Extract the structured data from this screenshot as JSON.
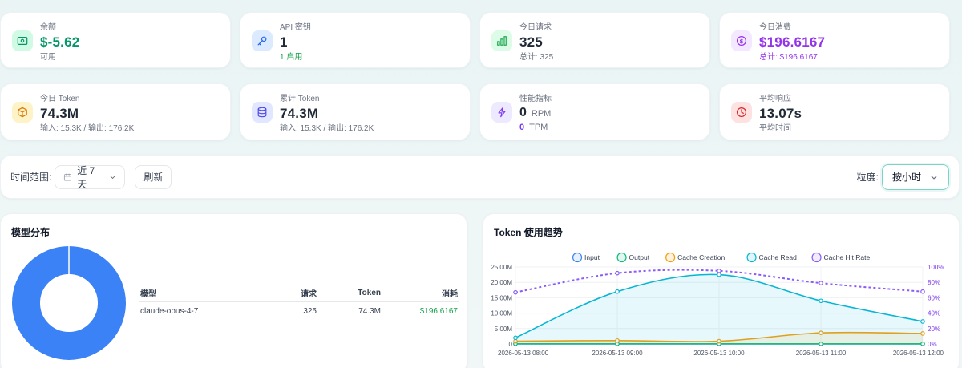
{
  "stats": [
    {
      "label": "余额",
      "value": "$-5.62",
      "sub": "可用",
      "icon": "wallet-icon",
      "color": "#059669",
      "bg": "#d1fae5",
      "sub_color": "#6b7280"
    },
    {
      "label": "API 密钥",
      "value": "1",
      "sub": "1 启用",
      "icon": "key-icon",
      "color": "#111827",
      "bg": "#dbeafe",
      "sub_color": "#16a34a"
    },
    {
      "label": "今日请求",
      "value": "325",
      "sub": "总计: 325",
      "icon": "bar-chart-icon",
      "color": "#111827",
      "bg": "#dcfce7",
      "sub_color": "#6b7280"
    },
    {
      "label": "今日消费",
      "value": "$196.6167",
      "sub": "总计: $196.6167",
      "icon": "dollar-icon",
      "color": "#9333ea",
      "bg": "#f3e8ff",
      "sub_color": "#9333ea"
    },
    {
      "label": "今日 Token",
      "value": "74.3M",
      "sub": "输入: 15.3K / 输出: 176.2K",
      "icon": "cube-icon",
      "color": "#111827",
      "bg": "#fef3c7",
      "sub_color": "#6b7280"
    },
    {
      "label": "累计 Token",
      "value": "74.3M",
      "sub": "输入: 15.3K / 输出: 176.2K",
      "icon": "database-icon",
      "color": "#111827",
      "bg": "#e0e7ff",
      "sub_color": "#6b7280"
    },
    {
      "label": "性能指标",
      "value": "0",
      "value_unit": "RPM",
      "sub_value": "0",
      "sub_unit": "TPM",
      "icon": "bolt-icon",
      "color": "#111827",
      "bg": "#ede9fe"
    },
    {
      "label": "平均响应",
      "value": "13.07s",
      "sub": "平均时间",
      "icon": "clock-icon",
      "color": "#111827",
      "bg": "#fee2e2",
      "sub_color": "#6b7280"
    }
  ],
  "filter": {
    "range_label": "时间范围:",
    "range_value": "近 7 天",
    "refresh_label": "刷新",
    "granularity_label": "粒度:",
    "granularity_value": "按小时"
  },
  "model_panel": {
    "title": "模型分布",
    "columns": [
      "模型",
      "请求",
      "Token",
      "消耗"
    ],
    "rows": [
      {
        "model": "claude-opus-4-7",
        "requests": "325",
        "tokens": "74.3M",
        "cost": "$196.6167"
      }
    ],
    "donut_color": "#3b82f6"
  },
  "chart_panel": {
    "title": "Token 使用趋势"
  },
  "chart_data": {
    "type": "line",
    "x": [
      "2026-05-13 08:00",
      "2026-05-13 09:00",
      "2026-05-13 10:00",
      "2026-05-13 11:00",
      "2026-05-13 12:00"
    ],
    "y_ticks": [
      "0",
      "5.00M",
      "10.00M",
      "15.00M",
      "20.00M",
      "25.00M"
    ],
    "y2_ticks": [
      "0%",
      "20%",
      "40%",
      "60%",
      "80%",
      "100%"
    ],
    "ylim": [
      0,
      25
    ],
    "y2lim": [
      0,
      100
    ],
    "legend_placement": "top-center",
    "grid": true,
    "series": [
      {
        "name": "Input",
        "values": [
          0.02,
          0.02,
          0.02,
          0.02,
          0.02
        ],
        "color": "#3b82f6",
        "axis": "left"
      },
      {
        "name": "Output",
        "values": [
          0.05,
          0.05,
          0.05,
          0.05,
          0.05
        ],
        "color": "#10b981",
        "axis": "left"
      },
      {
        "name": "Cache Creation",
        "values": [
          0.9,
          1.1,
          0.9,
          3.6,
          3.4
        ],
        "color": "#f59e0b",
        "axis": "left",
        "fill": true
      },
      {
        "name": "Cache Read",
        "values": [
          2.0,
          17.0,
          22.5,
          14.0,
          7.3
        ],
        "color": "#06b6d4",
        "axis": "left",
        "fill": true
      },
      {
        "name": "Cache Hit Rate",
        "values": [
          67,
          92,
          95,
          79,
          68
        ],
        "color": "#8b5cf6",
        "axis": "right",
        "dashed": true
      }
    ]
  }
}
